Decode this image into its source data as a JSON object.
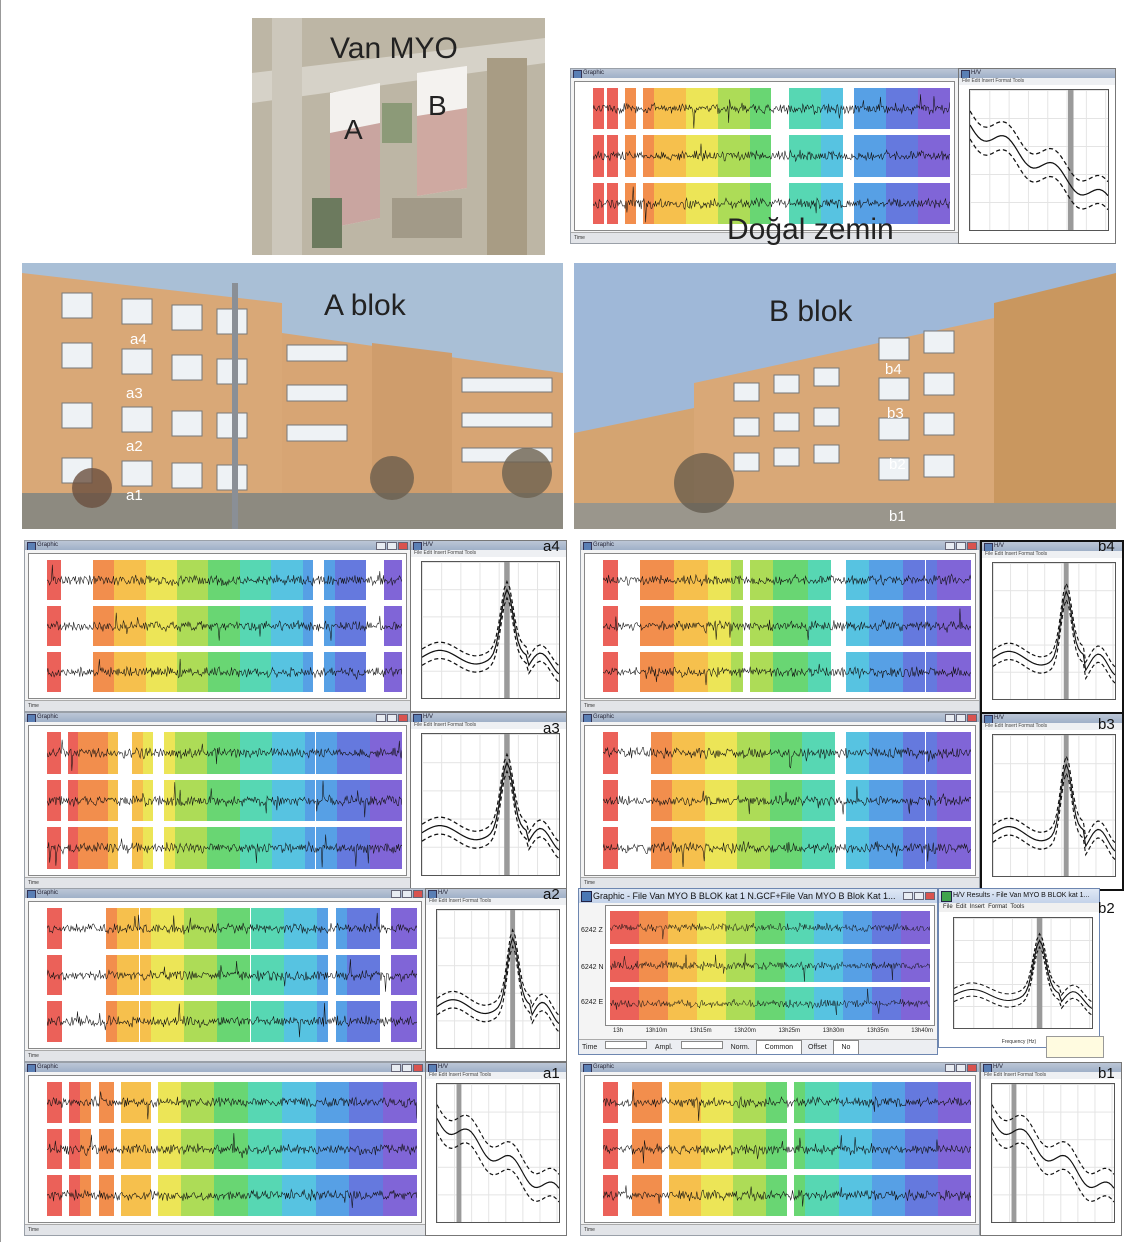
{
  "top_photo": {
    "title": "Van MYO",
    "label_a": "A",
    "label_b": "B"
  },
  "ground_panel": {
    "label": "Doğal zemin"
  },
  "a_block": {
    "title": "A blok",
    "floors": [
      "a4",
      "a3",
      "a2",
      "a1"
    ]
  },
  "b_block": {
    "title": "B blok",
    "floors": [
      "b4",
      "b3",
      "b2",
      "b1"
    ]
  },
  "panels": {
    "a4": "a4",
    "a3": "a3",
    "a2": "a2",
    "a1": "a1",
    "b4": "b4",
    "b3": "b3",
    "b2": "b2",
    "b1": "b1"
  },
  "b2_window": {
    "graphic_title": "Graphic - File Van MYO B BLOK kat 1 N.GCF+File Van MYO B Blok Kat 1...",
    "hv_title": "H/V Results - File Van MYO B BLOK kat 1...",
    "menu": [
      "File",
      "Edit",
      "Insert",
      "Format",
      "Tools"
    ],
    "channels": [
      "6242 Z",
      "6242 N",
      "6242 E"
    ],
    "time_ticks": [
      "13h",
      "13h10m",
      "13h15m",
      "13h20m",
      "13h25m",
      "13h30m",
      "13h35m",
      "13h40m"
    ],
    "status": {
      "time": "Time",
      "ampl": "Ampl.",
      "norm": "Norm.",
      "norm_value": "Common",
      "offset": "Offset",
      "offset_value": "No"
    },
    "freq_label": "Frequency (Hz)"
  },
  "colors": {
    "sky": "#a9bfd6",
    "facade": "#d9a877",
    "window": "#eef2f5"
  }
}
